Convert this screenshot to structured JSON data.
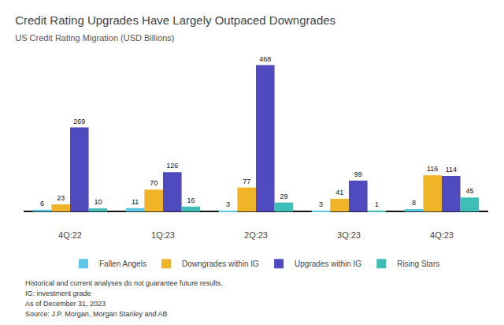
{
  "chart_data": {
    "type": "bar",
    "title": "Credit Rating Upgrades Have Largely Outpaced Downgrades",
    "subtitle": "US Credit Rating Migration (USD Billions)",
    "categories": [
      "4Q:22",
      "1Q:23",
      "2Q:23",
      "3Q:23",
      "4Q:23"
    ],
    "series": [
      {
        "name": "Fallen Angels",
        "color": "#5bc8e8",
        "values": [
          6,
          11,
          3,
          3,
          8
        ]
      },
      {
        "name": "Downgrades within IG",
        "color": "#f0b429",
        "values": [
          23,
          70,
          77,
          41,
          116
        ]
      },
      {
        "name": "Upgrades within IG",
        "color": "#4f4bbf",
        "values": [
          269,
          126,
          468,
          99,
          114
        ]
      },
      {
        "name": "Rising Stars",
        "color": "#3dbfb8",
        "values": [
          10,
          16,
          29,
          1,
          45
        ]
      }
    ],
    "ylim": [
      -55,
      520
    ],
    "grid": false,
    "legend": "bottom",
    "data_labels": true,
    "tick_labels": "x",
    "annotations": [
      "Historical and current analyses do not guarantee future results.",
      "IG: investment grade",
      "As of December 31, 2023",
      "Source: J.P. Morgan, Morgan Stanley and AB"
    ]
  }
}
